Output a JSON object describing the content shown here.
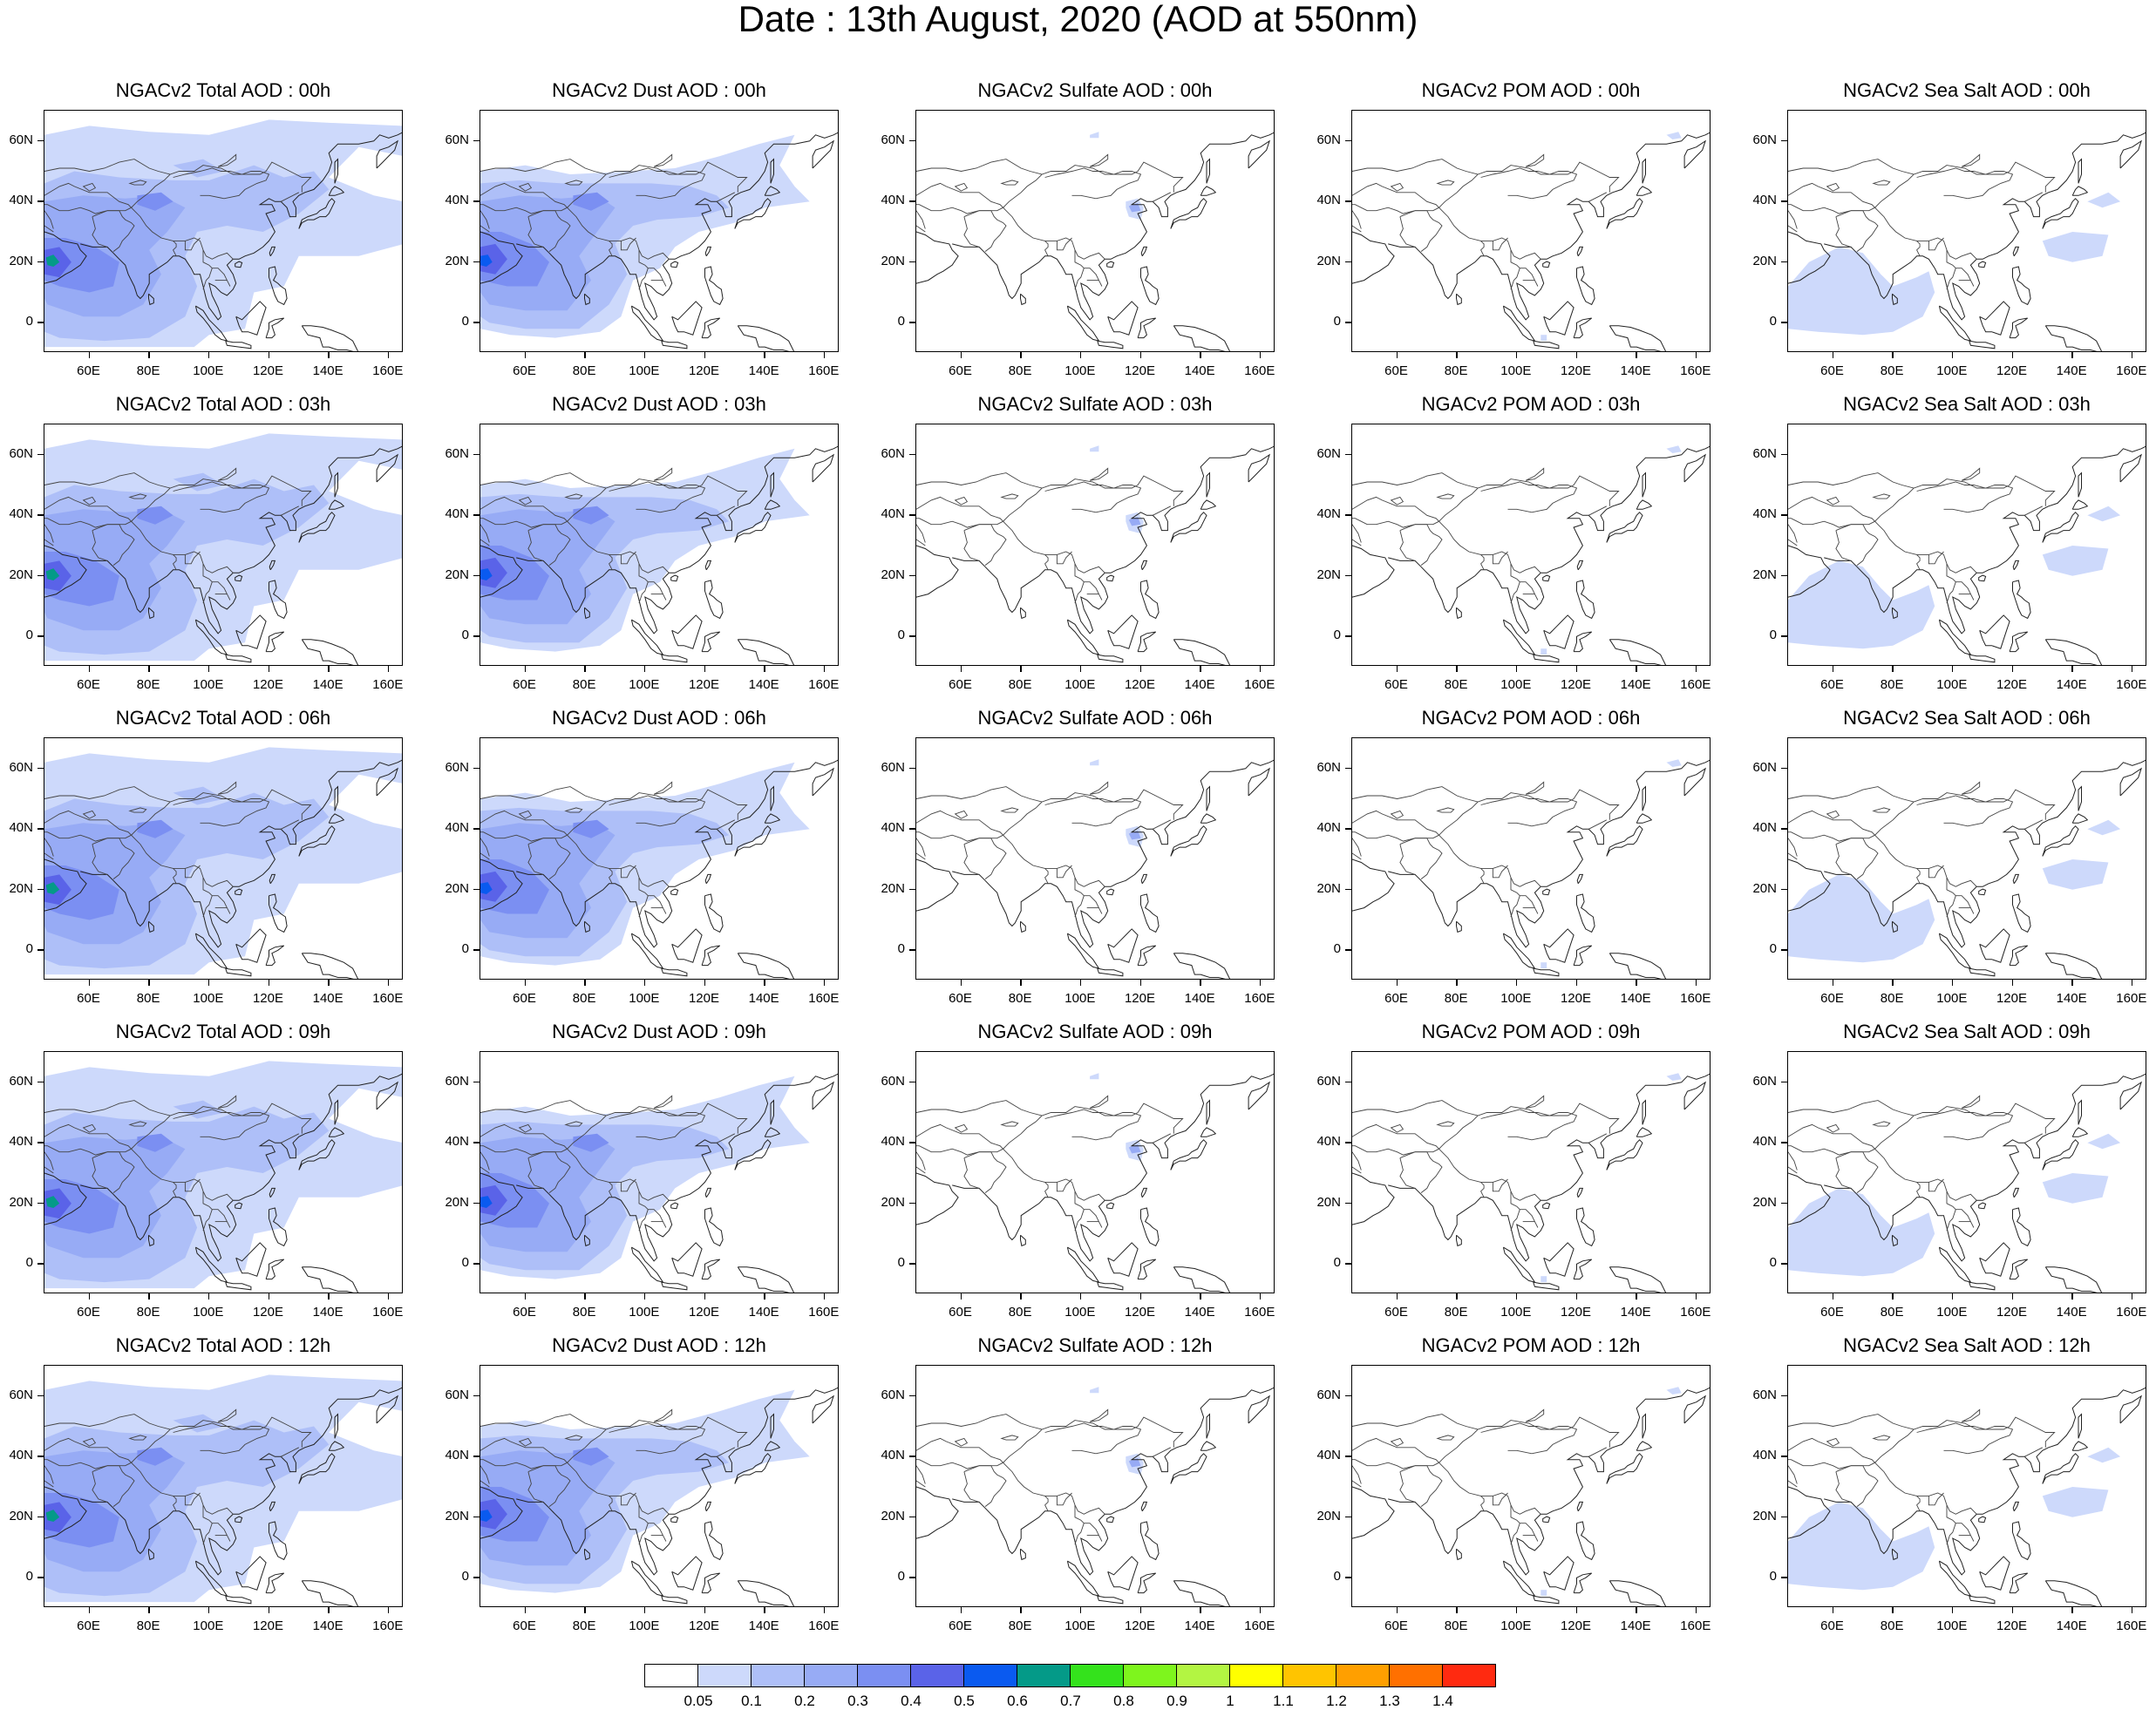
{
  "title": "Date : 13th August, 2020 (AOD at 550nm)",
  "lat_labels": [
    "60N",
    "40N",
    "20N",
    "0"
  ],
  "lon_labels": [
    "60E",
    "80E",
    "100E",
    "120E",
    "140E",
    "160E"
  ],
  "species": [
    {
      "key": "total",
      "pattern": "total"
    },
    {
      "key": "dust",
      "pattern": "dust"
    },
    {
      "key": "sulfate",
      "pattern": "sulfate"
    },
    {
      "key": "pom",
      "pattern": "pom"
    },
    {
      "key": "seasalt",
      "pattern": "seasalt"
    }
  ],
  "panels": [
    [
      "NGACv2 Total AOD : 00h",
      "NGACv2 Dust AOD : 00h",
      "NGACv2 Sulfate AOD : 00h",
      "NGACv2 POM AOD : 00h",
      "NGACv2 Sea Salt AOD : 00h"
    ],
    [
      "NGACv2 Total AOD : 03h",
      "NGACv2 Dust AOD : 03h",
      "NGACv2 Sulfate AOD : 03h",
      "NGACv2 POM AOD : 03h",
      "NGACv2 Sea Salt AOD : 03h"
    ],
    [
      "NGACv2 Total AOD : 06h",
      "NGACv2 Dust AOD : 06h",
      "NGACv2 Sulfate AOD : 06h",
      "NGACv2 POM AOD : 06h",
      "NGACv2 Sea Salt AOD : 06h"
    ],
    [
      "NGACv2 Total AOD : 09h",
      "NGACv2 Dust AOD : 09h",
      "NGACv2 Sulfate AOD : 09h",
      "NGACv2 POM AOD : 09h",
      "NGACv2 Sea Salt  AOD : 09h"
    ],
    [
      "NGACv2 Total AOD  : 12h",
      "NGACv2 Dust AOD : 12h",
      "NGACv2 Sulfate AOD : 12h",
      "NGACv2 POM  AOD : 12h",
      "NGACv2 Sea Salt  AOD : 12h"
    ]
  ],
  "colorbar": {
    "colors": [
      "#ffffff",
      "#cdd9fb",
      "#aebff8",
      "#97abf5",
      "#7b8ff2",
      "#5a63e8",
      "#0a5af0",
      "#049a88",
      "#34e21c",
      "#7ef51d",
      "#b3f542",
      "#ffff00",
      "#ffc400",
      "#ff9f00",
      "#ff7000",
      "#ff2a10"
    ],
    "labels": [
      "0.05",
      "0.1",
      "0.2",
      "0.3",
      "0.4",
      "0.5",
      "0.6",
      "0.7",
      "0.8",
      "0.9",
      "1",
      "1.1",
      "1.2",
      "1.3",
      "1.4"
    ]
  }
}
